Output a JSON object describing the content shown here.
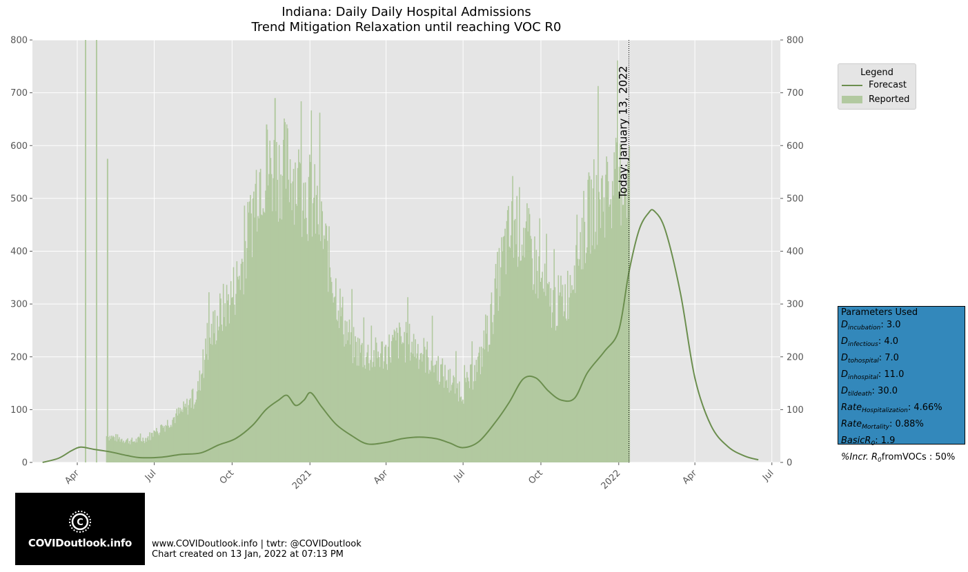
{
  "chart_data": {
    "type": "bar+line",
    "title_line1": "Indiana: Daily Daily Hospital Admissions",
    "title_line2": "Trend Mitigation Relaxation until reaching VOC R0",
    "ylim": [
      0,
      800
    ],
    "yticks": [
      0,
      100,
      200,
      300,
      400,
      500,
      600,
      700,
      800
    ],
    "xticks": [
      {
        "date": "2020-04-01",
        "label": "Apr"
      },
      {
        "date": "2020-07-01",
        "label": "Jul"
      },
      {
        "date": "2020-10-01",
        "label": "Oct"
      },
      {
        "date": "2021-01-01",
        "label": "2021"
      },
      {
        "date": "2021-04-01",
        "label": "Apr"
      },
      {
        "date": "2021-07-01",
        "label": "Jul"
      },
      {
        "date": "2021-10-01",
        "label": "Oct"
      },
      {
        "date": "2022-01-01",
        "label": "2022"
      },
      {
        "date": "2022-04-01",
        "label": "Apr"
      },
      {
        "date": "2022-07-01",
        "label": "Jul"
      }
    ],
    "xlim": [
      "2020-02-08",
      "2022-07-11"
    ],
    "grid": true,
    "legend_placement": "outside-right",
    "today_line": {
      "date": "2022-01-13",
      "label": "Today: January 13, 2022"
    },
    "series": [
      {
        "name": "Reported",
        "kind": "bar",
        "color": "#b2c9a0",
        "points": [
          [
            "2020-04-10",
            800
          ],
          [
            "2020-04-23",
            800
          ],
          [
            "2020-05-06",
            575
          ],
          [
            "2020-05-05",
            50
          ],
          [
            "2020-05-20",
            45
          ],
          [
            "2020-06-05",
            40
          ],
          [
            "2020-06-20",
            45
          ],
          [
            "2020-07-05",
            60
          ],
          [
            "2020-07-20",
            80
          ],
          [
            "2020-08-05",
            100
          ],
          [
            "2020-08-20",
            130
          ],
          [
            "2020-09-01",
            220
          ],
          [
            "2020-09-10",
            260
          ],
          [
            "2020-09-20",
            290
          ],
          [
            "2020-10-01",
            320
          ],
          [
            "2020-10-10",
            360
          ],
          [
            "2020-10-20",
            430
          ],
          [
            "2020-11-01",
            550
          ],
          [
            "2020-11-10",
            640
          ],
          [
            "2020-11-20",
            690
          ],
          [
            "2020-12-01",
            640
          ],
          [
            "2020-12-10",
            560
          ],
          [
            "2020-12-20",
            520
          ],
          [
            "2021-01-01",
            500
          ],
          [
            "2021-01-10",
            470
          ],
          [
            "2021-01-20",
            400
          ],
          [
            "2021-02-01",
            320
          ],
          [
            "2021-02-10",
            260
          ],
          [
            "2021-02-20",
            220
          ],
          [
            "2021-03-01",
            210
          ],
          [
            "2021-03-15",
            200
          ],
          [
            "2021-04-01",
            210
          ],
          [
            "2021-04-15",
            230
          ],
          [
            "2021-05-01",
            225
          ],
          [
            "2021-05-15",
            205
          ],
          [
            "2021-06-01",
            180
          ],
          [
            "2021-06-15",
            150
          ],
          [
            "2021-07-01",
            135
          ],
          [
            "2021-07-10",
            160
          ],
          [
            "2021-07-20",
            190
          ],
          [
            "2021-08-01",
            260
          ],
          [
            "2021-08-10",
            340
          ],
          [
            "2021-08-20",
            410
          ],
          [
            "2021-09-01",
            450
          ],
          [
            "2021-09-10",
            440
          ],
          [
            "2021-09-20",
            390
          ],
          [
            "2021-10-01",
            340
          ],
          [
            "2021-10-10",
            300
          ],
          [
            "2021-10-20",
            300
          ],
          [
            "2021-11-01",
            320
          ],
          [
            "2021-11-10",
            390
          ],
          [
            "2021-11-20",
            440
          ],
          [
            "2021-12-01",
            490
          ],
          [
            "2021-12-10",
            500
          ],
          [
            "2021-12-20",
            510
          ],
          [
            "2022-01-01",
            530
          ],
          [
            "2022-01-13",
            540
          ]
        ]
      },
      {
        "name": "Forecast",
        "kind": "line",
        "color": "#6b8e4e",
        "points": [
          [
            "2020-02-20",
            0
          ],
          [
            "2020-03-10",
            8
          ],
          [
            "2020-03-25",
            22
          ],
          [
            "2020-04-05",
            29
          ],
          [
            "2020-04-20",
            25
          ],
          [
            "2020-05-10",
            20
          ],
          [
            "2020-05-30",
            13
          ],
          [
            "2020-06-15",
            9
          ],
          [
            "2020-07-10",
            10
          ],
          [
            "2020-08-01",
            15
          ],
          [
            "2020-08-25",
            18
          ],
          [
            "2020-09-15",
            33
          ],
          [
            "2020-10-05",
            45
          ],
          [
            "2020-10-25",
            70
          ],
          [
            "2020-11-10",
            100
          ],
          [
            "2020-11-25",
            118
          ],
          [
            "2020-12-05",
            127
          ],
          [
            "2020-12-15",
            108
          ],
          [
            "2020-12-25",
            118
          ],
          [
            "2021-01-02",
            132
          ],
          [
            "2021-01-15",
            105
          ],
          [
            "2021-02-01",
            72
          ],
          [
            "2021-02-20",
            50
          ],
          [
            "2021-03-10",
            35
          ],
          [
            "2021-04-01",
            38
          ],
          [
            "2021-04-20",
            45
          ],
          [
            "2021-05-10",
            48
          ],
          [
            "2021-05-30",
            45
          ],
          [
            "2021-06-15",
            37
          ],
          [
            "2021-07-01",
            28
          ],
          [
            "2021-07-20",
            40
          ],
          [
            "2021-08-10",
            80
          ],
          [
            "2021-08-25",
            115
          ],
          [
            "2021-09-10",
            158
          ],
          [
            "2021-09-25",
            160
          ],
          [
            "2021-10-10",
            135
          ],
          [
            "2021-10-25",
            118
          ],
          [
            "2021-11-10",
            122
          ],
          [
            "2021-11-25",
            170
          ],
          [
            "2021-12-15",
            210
          ],
          [
            "2022-01-01",
            250
          ],
          [
            "2022-01-13",
            360
          ],
          [
            "2022-01-25",
            440
          ],
          [
            "2022-02-05",
            472
          ],
          [
            "2022-02-12",
            476
          ],
          [
            "2022-02-25",
            440
          ],
          [
            "2022-03-15",
            320
          ],
          [
            "2022-04-01",
            160
          ],
          [
            "2022-04-20",
            70
          ],
          [
            "2022-05-10",
            30
          ],
          [
            "2022-05-30",
            12
          ],
          [
            "2022-06-15",
            5
          ]
        ]
      }
    ]
  },
  "legend": {
    "title": "Legend",
    "forecast_label": "Forecast",
    "reported_label": "Reported"
  },
  "params": {
    "title": "Parameters Used",
    "rows": [
      {
        "sym": "D",
        "sub": "incubation",
        "val": ": 3.0"
      },
      {
        "sym": "D",
        "sub": "infectious",
        "val": ": 4.0"
      },
      {
        "sym": "D",
        "sub": "tohospital",
        "val": ": 7.0"
      },
      {
        "sym": "D",
        "sub": "inhospital",
        "val": ": 11.0"
      },
      {
        "sym": "D",
        "sub": "tildeath",
        "val": ": 30.0"
      },
      {
        "sym": "Rate",
        "sub": "Hospitalization",
        "val": ": 4.66%"
      },
      {
        "sym": "Rate",
        "sub": "Mortality",
        "val": ": 0.88%"
      },
      {
        "sym": "BasicR",
        "sub": "0",
        "val": ": 1.9"
      },
      {
        "sym": "%Incr. R",
        "sub": "0",
        "val": "fromVOCs : 50%"
      }
    ]
  },
  "logo": {
    "text": "COVIDoutlook.info"
  },
  "footer": {
    "line1": "www.COVIDoutlook.info | twtr: @COVIDoutlook",
    "line2": "Chart created on 13 Jan, 2022 at 07:13 PM"
  }
}
